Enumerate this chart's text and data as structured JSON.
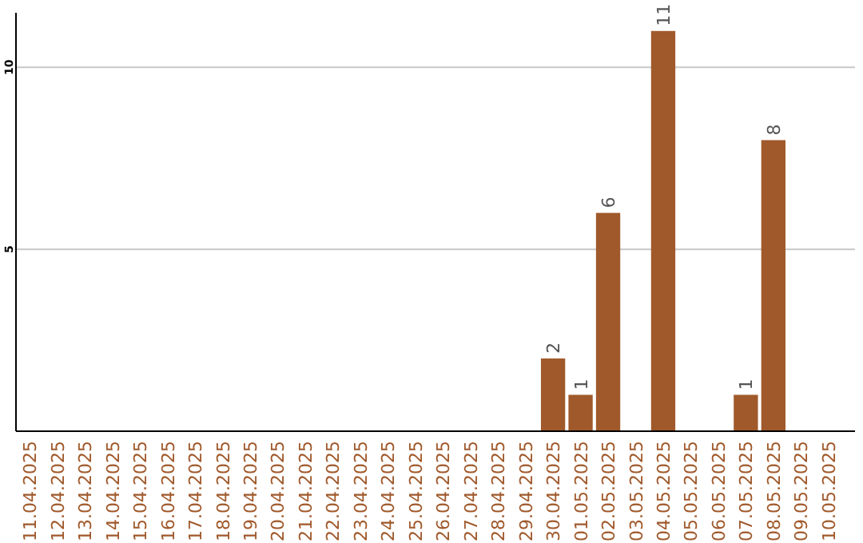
{
  "chart_data": {
    "type": "bar",
    "categories": [
      "11.04.2025",
      "12.04.2025",
      "13.04.2025",
      "14.04.2025",
      "15.04.2025",
      "16.04.2025",
      "17.04.2025",
      "18.04.2025",
      "19.04.2025",
      "20.04.2025",
      "21.04.2025",
      "22.04.2025",
      "23.04.2025",
      "24.04.2025",
      "25.04.2025",
      "26.04.2025",
      "27.04.2025",
      "28.04.2025",
      "29.04.2025",
      "30.04.2025",
      "01.05.2025",
      "02.05.2025",
      "03.05.2025",
      "04.05.2025",
      "05.05.2025",
      "06.05.2025",
      "07.05.2025",
      "08.05.2025",
      "09.05.2025",
      "10.05.2025"
    ],
    "values": [
      null,
      null,
      null,
      null,
      null,
      null,
      null,
      null,
      null,
      null,
      null,
      null,
      null,
      null,
      null,
      null,
      null,
      null,
      null,
      2,
      1,
      6,
      null,
      11,
      null,
      null,
      1,
      8,
      null,
      null
    ],
    "color": "#a0592b",
    "ylim": [
      0,
      11.5
    ],
    "yticks": [
      5,
      10
    ],
    "grid": "y",
    "data_labels": true
  }
}
